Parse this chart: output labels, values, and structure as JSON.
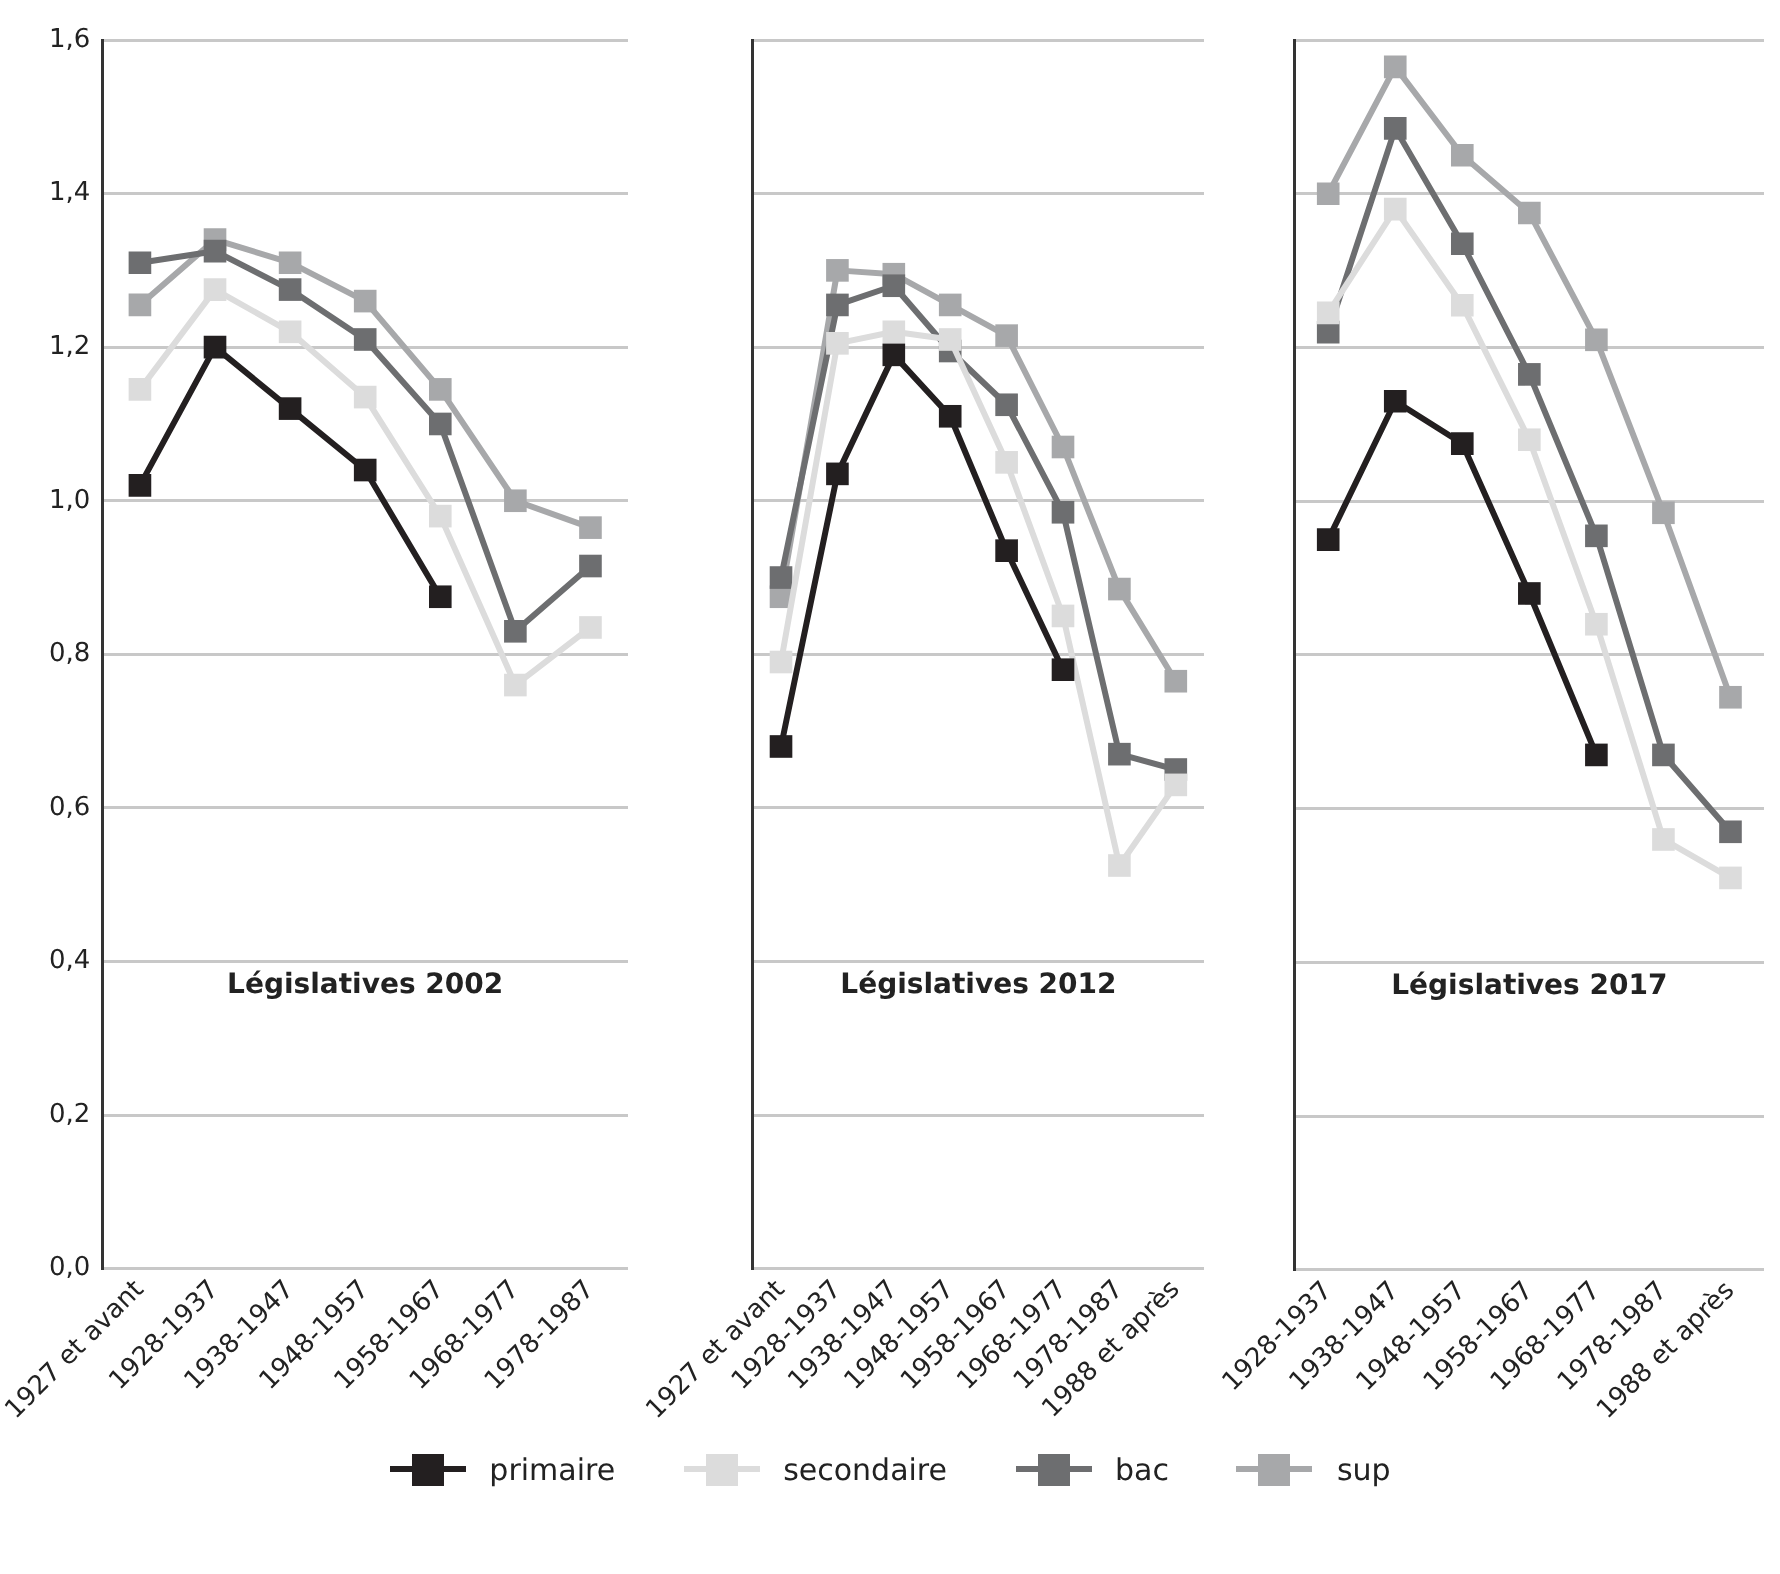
{
  "chart_data": [
    {
      "type": "line",
      "title": "Législatives 2002",
      "categories": [
        "1927 et avant",
        "1928-1937",
        "1938-1947",
        "1948-1957",
        "1958-1967",
        "1968-1977",
        "1978-1987"
      ],
      "series": [
        {
          "name": "primaire",
          "color": "#231f20",
          "values": [
            1.02,
            1.2,
            1.12,
            1.04,
            0.875,
            null,
            null
          ]
        },
        {
          "name": "secondaire",
          "color": "#dcdcdc",
          "values": [
            1.145,
            1.275,
            1.22,
            1.135,
            0.98,
            0.76,
            0.835
          ]
        },
        {
          "name": "bac",
          "color": "#6d6e70",
          "values": [
            1.31,
            1.325,
            1.275,
            1.21,
            1.1,
            0.83,
            0.915
          ]
        },
        {
          "name": "sup",
          "color": "#a7a8aa",
          "values": [
            1.255,
            1.34,
            1.31,
            1.26,
            1.145,
            1.0,
            0.965
          ]
        }
      ],
      "ylim": [
        0,
        1.6
      ],
      "yticks": [
        {
          "value": 0,
          "label": "0,0"
        },
        {
          "value": 0.2,
          "label": "0,2"
        },
        {
          "value": 0.4,
          "label": "0,4"
        },
        {
          "value": 0.6,
          "label": "0,6"
        },
        {
          "value": 0.8,
          "label": "0,8"
        },
        {
          "value": 1,
          "label": "1,0"
        },
        {
          "value": 1.2,
          "label": "1,2"
        },
        {
          "value": 1.4,
          "label": "1,4"
        },
        {
          "value": 1.6,
          "label": "1,6"
        }
      ],
      "grid": "y",
      "marker": "square",
      "legend": "bottom"
    },
    {
      "type": "line",
      "title": "Législatives 2012",
      "categories": [
        "1927 et avant",
        "1928-1937",
        "1938-1947",
        "1948-1957",
        "1958-1967",
        "1968-1977",
        "1978-1987",
        "1988 et après"
      ],
      "series": [
        {
          "color": "#231f20",
          "values": [
            0.68,
            1.035,
            1.19,
            1.11,
            0.935,
            0.78,
            null,
            null
          ]
        },
        {
          "color": "#dcdcdc",
          "values": [
            0.79,
            1.205,
            1.22,
            1.21,
            1.05,
            0.85,
            0.525,
            0.63
          ]
        },
        {
          "color": "#6d6e70",
          "values": [
            0.9,
            1.255,
            1.28,
            1.195,
            1.125,
            0.985,
            0.67,
            0.65
          ]
        },
        {
          "color": "#a7a8aa",
          "values": [
            0.875,
            1.3,
            1.295,
            1.255,
            1.215,
            1.07,
            0.885,
            0.765
          ]
        }
      ],
      "ylim": [
        0,
        1.6
      ],
      "yticks": [
        0,
        0.2,
        0.4,
        0.6,
        0.8,
        1,
        1.2,
        1.4,
        1.6
      ],
      "grid": "y",
      "marker": "square",
      "tick_labels": "x"
    },
    {
      "type": "line",
      "title": "Législatives 2017",
      "categories": [
        "1928-1937",
        "1938-1947",
        "1948-1957",
        "1958-1967",
        "1968-1977",
        "1978-1987",
        "1988 et après"
      ],
      "series": [
        {
          "color": "#231f20",
          "values": [
            0.95,
            1.13,
            1.075,
            0.88,
            0.67,
            null,
            null
          ]
        },
        {
          "color": "#dcdcdc",
          "values": [
            1.245,
            1.38,
            1.255,
            1.08,
            0.84,
            0.56,
            0.51
          ]
        },
        {
          "color": "#6d6e70",
          "values": [
            1.22,
            1.485,
            1.335,
            1.165,
            0.955,
            0.67,
            0.57
          ]
        },
        {
          "color": "#a7a8aa",
          "values": [
            1.4,
            1.565,
            1.45,
            1.375,
            1.21,
            0.985,
            0.745
          ]
        }
      ],
      "ylim": [
        0,
        1.6
      ],
      "yticks": [
        0,
        0.2,
        0.4,
        0.6,
        0.8,
        1,
        1.2,
        1.4,
        1.6
      ],
      "grid": "y",
      "marker": "square",
      "tick_labels": "x"
    }
  ]
}
